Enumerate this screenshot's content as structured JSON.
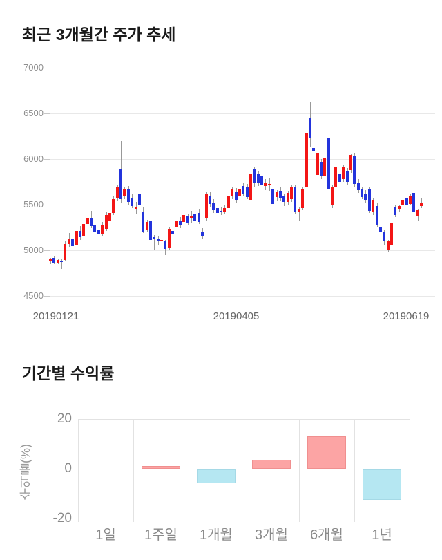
{
  "chart_data": [
    {
      "type": "candlestick",
      "title": "최근 3개월간 주가 추세",
      "x_axis": {
        "ticks": [
          "20190121",
          "20190405",
          "20190619"
        ]
      },
      "y_axis": {
        "min": 4500,
        "max": 7000,
        "ticks": [
          "7000",
          "6500",
          "6000",
          "5500",
          "5000",
          "4500"
        ]
      },
      "colors": {
        "up": "#f31616",
        "down": "#2334dc",
        "wick": "#999999",
        "grid": "#e8e8e8",
        "axis": "#c8c8c8"
      },
      "candles": [
        [
          4880,
          4920,
          4855,
          4905
        ],
        [
          4920,
          4932,
          4848,
          4868
        ],
        [
          4868,
          4910,
          4850,
          4895
        ],
        [
          4890,
          4905,
          4800,
          4872
        ],
        [
          4895,
          5105,
          4878,
          5070
        ],
        [
          5070,
          5190,
          5040,
          5125
        ],
        [
          5125,
          5150,
          5020,
          5048
        ],
        [
          5060,
          5250,
          5040,
          5210
        ],
        [
          5210,
          5262,
          5108,
          5140
        ],
        [
          5150,
          5340,
          5130,
          5290
        ],
        [
          5290,
          5452,
          5260,
          5350
        ],
        [
          5350,
          5430,
          5240,
          5270
        ],
        [
          5270,
          5312,
          5170,
          5200
        ],
        [
          5230,
          5282,
          5152,
          5180
        ],
        [
          5180,
          5312,
          5160,
          5280
        ],
        [
          5235,
          5422,
          5210,
          5385
        ],
        [
          5323,
          5480,
          5300,
          5412
        ],
        [
          5412,
          5600,
          5390,
          5560
        ],
        [
          5576,
          5720,
          5540,
          5689
        ],
        [
          5890,
          6195,
          5513,
          5564
        ],
        [
          5589,
          5700,
          5560,
          5664
        ],
        [
          5677,
          5702,
          5500,
          5530
        ],
        [
          5568,
          5610,
          5460,
          5487
        ],
        [
          5449,
          5530,
          5400,
          5474
        ],
        [
          5614,
          5640,
          5480,
          5500
        ],
        [
          5424,
          5470,
          5190,
          5197
        ],
        [
          5227,
          5330,
          5200,
          5311
        ],
        [
          5323,
          5350,
          5090,
          5108
        ],
        [
          5145,
          5165,
          4995,
          5130
        ],
        [
          5127,
          5160,
          5060,
          5096
        ],
        [
          5100,
          5140,
          5070,
          5115
        ],
        [
          5096,
          5110,
          4945,
          5015
        ],
        [
          5026,
          5260,
          5000,
          5235
        ],
        [
          5215,
          5265,
          5140,
          5180
        ],
        [
          5253,
          5350,
          5230,
          5329
        ],
        [
          5323,
          5360,
          5240,
          5273
        ],
        [
          5311,
          5420,
          5290,
          5386
        ],
        [
          5373,
          5400,
          5270,
          5298
        ],
        [
          5345,
          5430,
          5300,
          5370
        ],
        [
          5399,
          5440,
          5300,
          5323
        ],
        [
          5412,
          5450,
          5290,
          5311
        ],
        [
          5205,
          5240,
          5120,
          5155
        ],
        [
          5348,
          5639,
          5330,
          5614
        ],
        [
          5600,
          5640,
          5480,
          5510
        ],
        [
          5513,
          5560,
          5410,
          5437
        ],
        [
          5462,
          5500,
          5380,
          5412
        ],
        [
          5435,
          5480,
          5390,
          5425
        ],
        [
          5420,
          5490,
          5400,
          5460
        ],
        [
          5462,
          5625,
          5440,
          5602
        ],
        [
          5589,
          5700,
          5560,
          5664
        ],
        [
          5639,
          5680,
          5520,
          5551
        ],
        [
          5602,
          5710,
          5570,
          5677
        ],
        [
          5702,
          5740,
          5590,
          5614
        ],
        [
          5700,
          5730,
          5560,
          5590
        ],
        [
          5540,
          5867,
          5530,
          5830
        ],
        [
          5890,
          5917,
          5700,
          5740
        ],
        [
          5830,
          5860,
          5700,
          5730
        ],
        [
          5816,
          5850,
          5680,
          5715
        ],
        [
          5702,
          5780,
          5660,
          5740
        ],
        [
          5718,
          5790,
          5650,
          5725
        ],
        [
          5675,
          5700,
          5490,
          5510
        ],
        [
          5583,
          5660,
          5540,
          5639
        ],
        [
          5651,
          5690,
          5540,
          5576
        ],
        [
          5589,
          5620,
          5480,
          5526
        ],
        [
          5530,
          5650,
          5500,
          5626
        ],
        [
          5560,
          5710,
          5530,
          5690
        ],
        [
          5689,
          5710,
          5400,
          5424
        ],
        [
          5425,
          5480,
          5320,
          5450
        ],
        [
          5462,
          5690,
          5440,
          5664
        ],
        [
          5690,
          6310,
          5660,
          6290
        ],
        [
          6445,
          6630,
          6130,
          6230
        ],
        [
          6120,
          6150,
          5930,
          6080
        ],
        [
          5830,
          6090,
          5810,
          6070
        ],
        [
          5965,
          6000,
          5780,
          5815
        ],
        [
          5815,
          6030,
          5780,
          6010
        ],
        [
          6235,
          6280,
          5640,
          5665
        ],
        [
          5490,
          5710,
          5460,
          5690
        ],
        [
          5690,
          5940,
          5660,
          5915
        ],
        [
          5830,
          5870,
          5720,
          5750
        ],
        [
          5777,
          5930,
          5750,
          5908
        ],
        [
          5872,
          5900,
          5720,
          5751
        ],
        [
          5877,
          6055,
          5850,
          6042
        ],
        [
          6030,
          6060,
          5700,
          5726
        ],
        [
          5738,
          5780,
          5630,
          5663
        ],
        [
          5675,
          5700,
          5560,
          5587
        ],
        [
          5620,
          5660,
          5520,
          5550
        ],
        [
          5677,
          5690,
          5410,
          5437
        ],
        [
          5412,
          5570,
          5390,
          5551
        ],
        [
          5487,
          5520,
          5250,
          5273
        ],
        [
          5260,
          5300,
          5170,
          5197
        ],
        [
          5197,
          5230,
          5060,
          5096
        ],
        [
          4995,
          5110,
          4985,
          5096
        ],
        [
          5058,
          5310,
          5040,
          5298
        ],
        [
          5475,
          5500,
          5360,
          5386
        ],
        [
          5449,
          5500,
          5420,
          5487
        ],
        [
          5490,
          5570,
          5460,
          5550
        ],
        [
          5575,
          5600,
          5480,
          5500
        ],
        [
          5513,
          5620,
          5490,
          5602
        ],
        [
          5626,
          5650,
          5400,
          5412
        ],
        [
          5374,
          5450,
          5330,
          5437
        ],
        [
          5487,
          5576,
          5460,
          5526
        ]
      ]
    },
    {
      "type": "bar",
      "title": "기간별 수익률",
      "ylabel": "수익률(%)",
      "categories": [
        "1일",
        "1주일",
        "1개월",
        "3개월",
        "6개월",
        "1년"
      ],
      "values": [
        0,
        1.0,
        -5.5,
        3.7,
        13.1,
        -12.2
      ],
      "ylim": [
        -20,
        20
      ],
      "y_ticks": [
        "20",
        "0",
        "-20"
      ],
      "colors": {
        "pos_fill": "#fca4a4",
        "pos_border": "#f08f8f",
        "neg_fill": "#b5e7f2",
        "neg_border": "#a5d9e6",
        "grid": "#e2e2e2",
        "zero_line": "#9c9c9c"
      }
    }
  ]
}
